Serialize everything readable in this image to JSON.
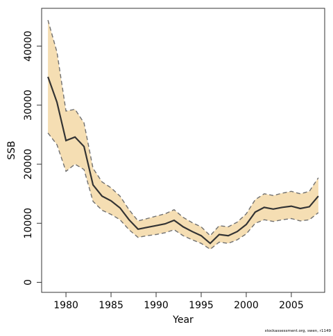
{
  "chart_data": {
    "type": "area",
    "xlabel": "Year",
    "ylabel": "SSB",
    "credit": "stockassessment.org, swen, r1149",
    "xlim": [
      1977.3,
      2008.7
    ],
    "ylim": [
      -1700,
      46400
    ],
    "x_ticks": [
      1980,
      1985,
      1990,
      1995,
      2000,
      2005
    ],
    "y_ticks": [
      0,
      10000,
      20000,
      30000,
      40000
    ],
    "grid": false,
    "legend": "none",
    "x": [
      1978,
      1979,
      1980,
      1981,
      1982,
      1983,
      1984,
      1985,
      1986,
      1987,
      1988,
      1989,
      1990,
      1991,
      1992,
      1993,
      1994,
      1995,
      1996,
      1997,
      1998,
      1999,
      2000,
      2001,
      2002,
      2003,
      2004,
      2005,
      2006,
      2007,
      2008
    ],
    "series": [
      {
        "values": [
          34800,
          30500,
          24000,
          24600,
          23000,
          16500,
          14600,
          13800,
          12600,
          10600,
          9000,
          9300,
          9600,
          9900,
          10500,
          9400,
          8600,
          7900,
          6600,
          8100,
          7900,
          8600,
          9800,
          11900,
          12700,
          12400,
          12700,
          12900,
          12500,
          12800,
          14600
        ]
      },
      {
        "values": [
          44400,
          39000,
          29000,
          29300,
          27000,
          19300,
          17000,
          16000,
          14600,
          12300,
          10400,
          10800,
          11200,
          11600,
          12300,
          11000,
          10100,
          9400,
          7900,
          9600,
          9400,
          10200,
          11600,
          14000,
          15000,
          14700,
          15100,
          15400,
          15000,
          15400,
          17700
        ]
      },
      {
        "values": [
          25300,
          23300,
          18800,
          20000,
          19100,
          13700,
          12200,
          11500,
          10600,
          8900,
          7600,
          7900,
          8100,
          8400,
          8900,
          7900,
          7200,
          6600,
          5600,
          6800,
          6600,
          7200,
          8200,
          10000,
          10600,
          10300,
          10600,
          10800,
          10400,
          10600,
          11800
        ]
      }
    ],
    "colors": {
      "band": "#f5deb3",
      "line": "#333333",
      "bound": "#707070",
      "axis": "#333333"
    }
  }
}
